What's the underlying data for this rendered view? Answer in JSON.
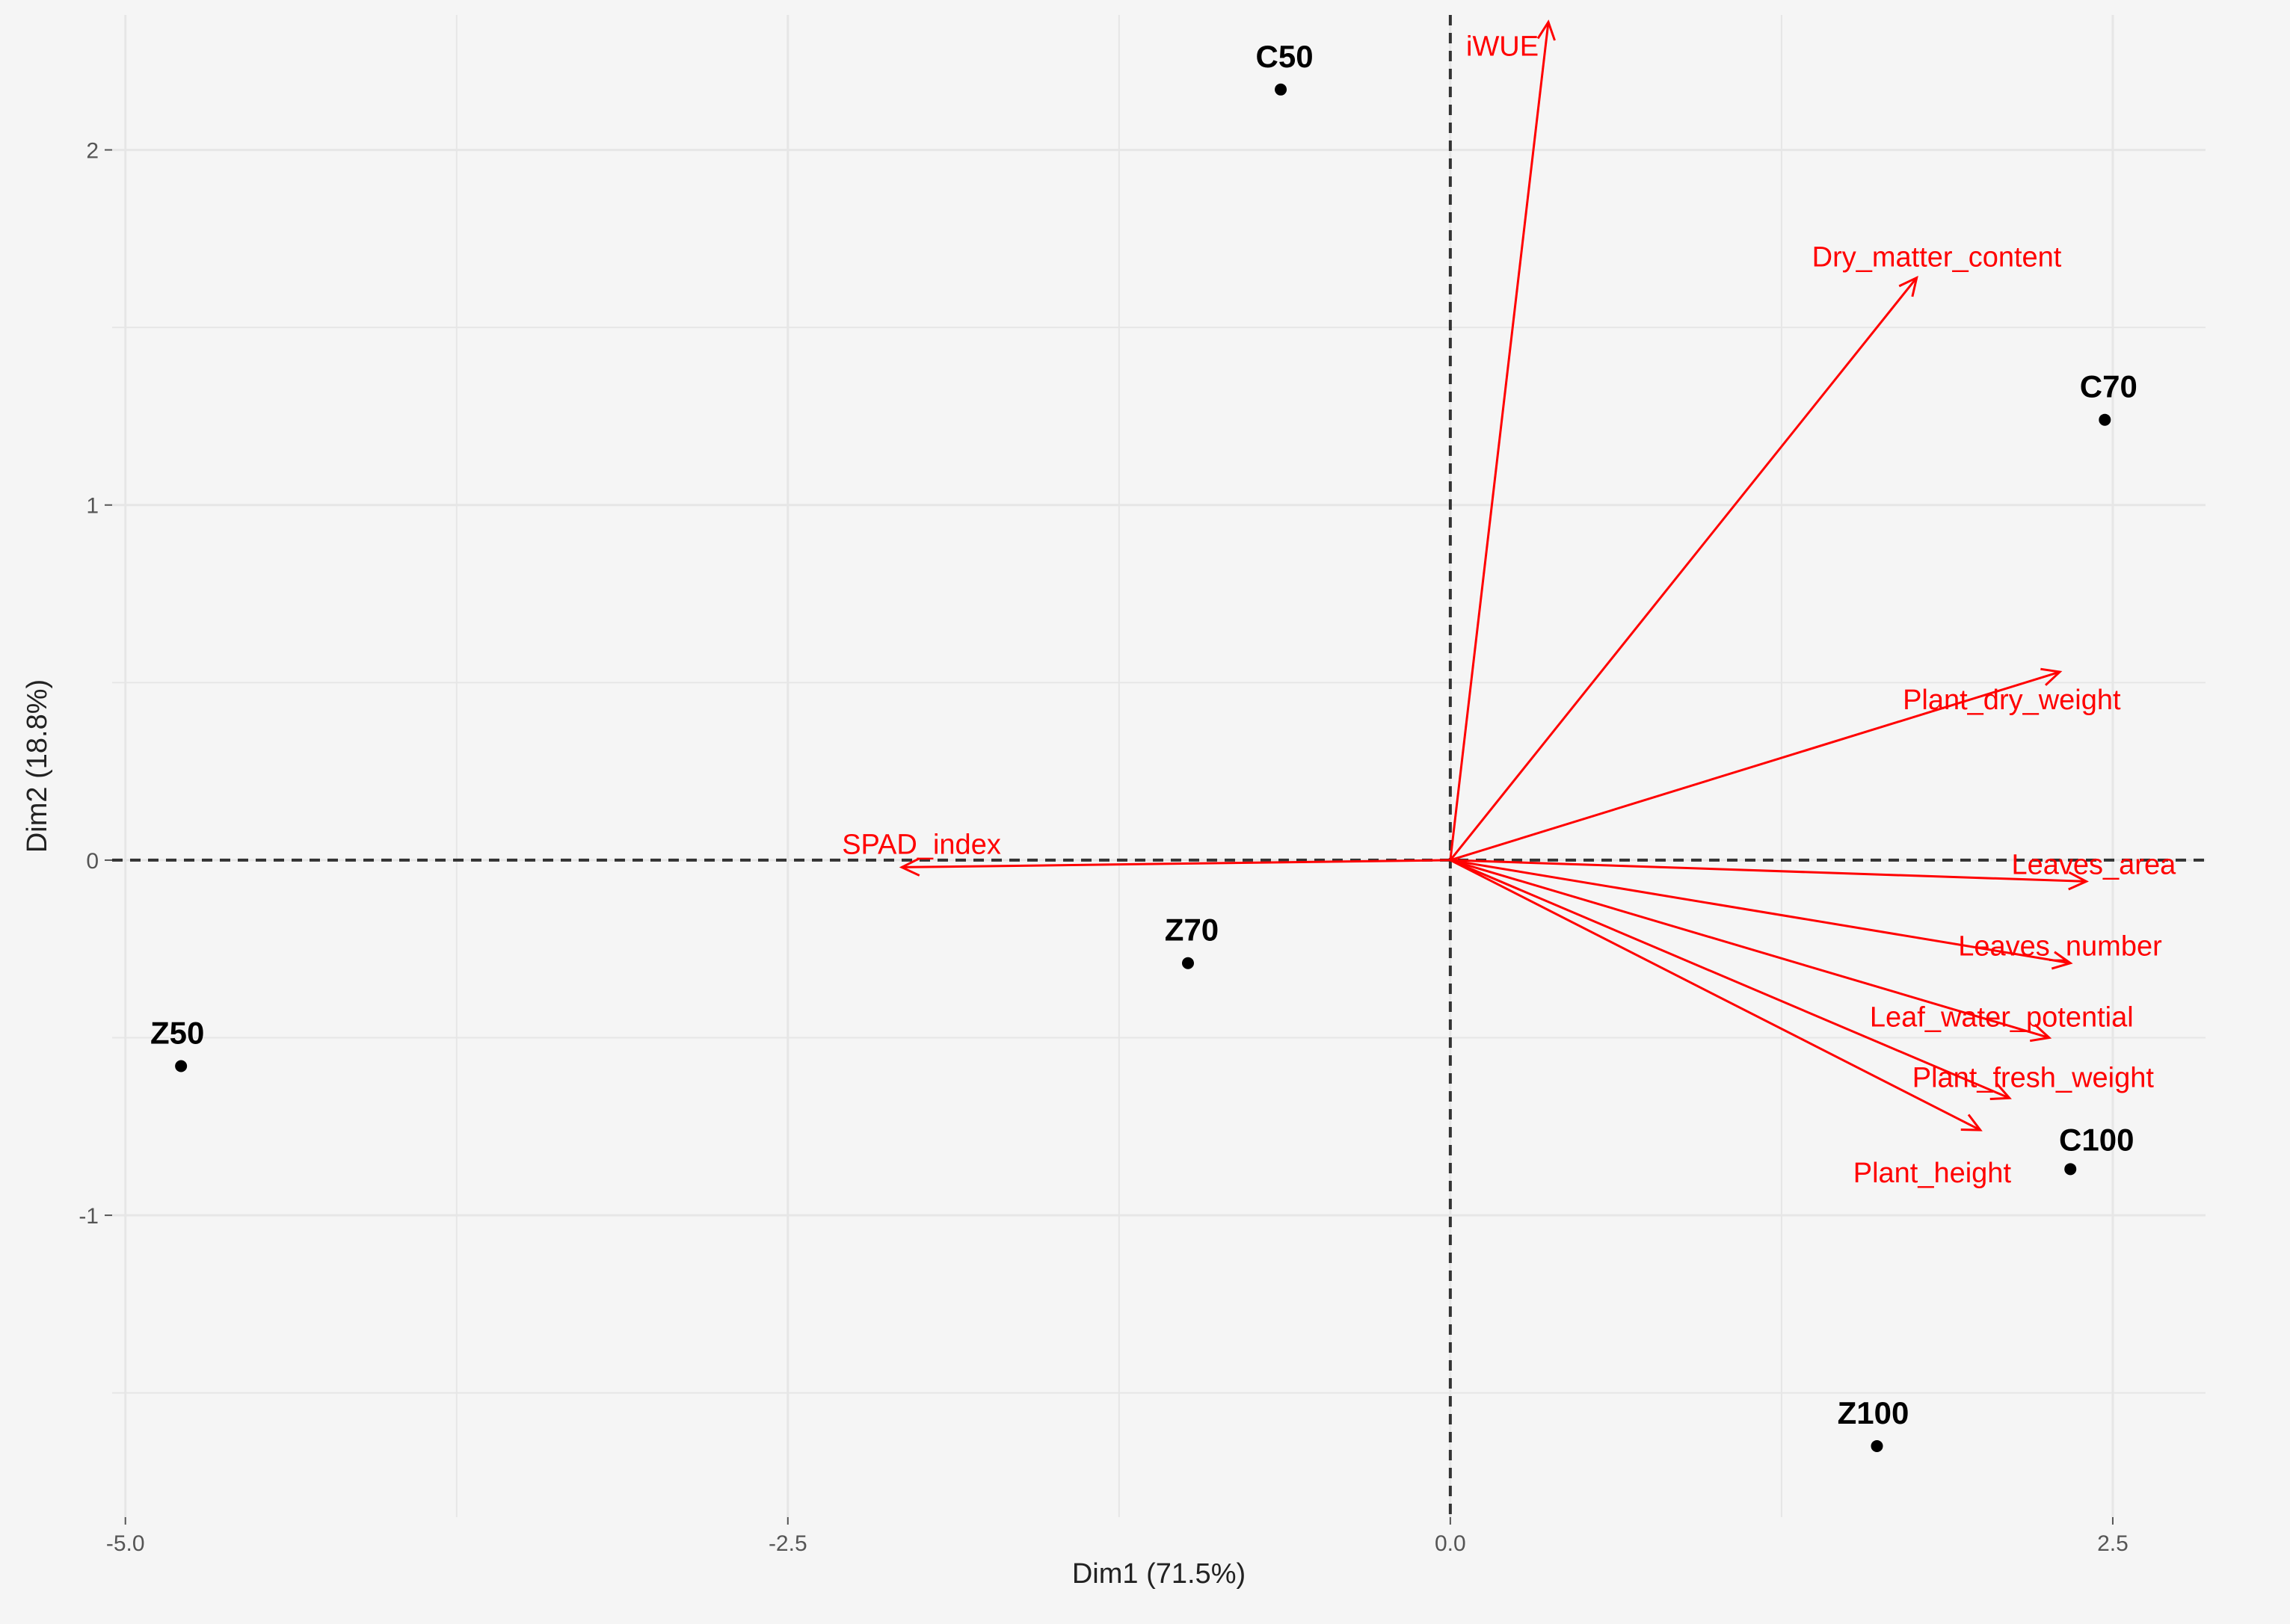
{
  "chart_data": {
    "type": "scatter",
    "subtype": "pca-biplot",
    "xlabel": "Dim1 (71.5%)",
    "ylabel": "Dim2 (18.8%)",
    "xlim": [
      -5.05,
      2.85
    ],
    "ylim": [
      -1.85,
      2.38
    ],
    "x_ticks": [
      {
        "value": -5.0,
        "label": "-5.0"
      },
      {
        "value": -2.5,
        "label": "-2.5"
      },
      {
        "value": 0.0,
        "label": "0.0"
      },
      {
        "value": 2.5,
        "label": "2.5"
      }
    ],
    "y_ticks": [
      {
        "value": -1,
        "label": "-1"
      },
      {
        "value": 0,
        "label": "0"
      },
      {
        "value": 1,
        "label": "1"
      },
      {
        "value": 2,
        "label": "2"
      }
    ],
    "minor_x": [
      -3.75,
      -1.25,
      1.25
    ],
    "minor_y": [
      -1.5,
      -0.5,
      0.5,
      1.5
    ],
    "grid": true,
    "background": "#f5f5f5",
    "grid_color": "#e6e6e6",
    "point_color": "#000000",
    "vector_color": "#ff0000",
    "points": [
      {
        "label": "C50",
        "x": -0.64,
        "y": 2.17
      },
      {
        "label": "C70",
        "x": 2.47,
        "y": 1.24
      },
      {
        "label": "Z70",
        "x": -0.99,
        "y": -0.29
      },
      {
        "label": "Z50",
        "x": -4.79,
        "y": -0.58
      },
      {
        "label": "C100",
        "x": 2.34,
        "y": -0.87
      },
      {
        "label": "Z100",
        "x": 1.61,
        "y": -1.65
      }
    ],
    "vectors": [
      {
        "label": "iWUE",
        "x": 0.37,
        "y": 2.36
      },
      {
        "label": "Dry_matter_content",
        "x": 1.76,
        "y": 1.64
      },
      {
        "label": "Plant_dry_weight",
        "x": 2.3,
        "y": 0.53
      },
      {
        "label": "SPAD_index",
        "x": -2.07,
        "y": -0.02
      },
      {
        "label": "Leaves_area",
        "x": 2.4,
        "y": -0.06
      },
      {
        "label": "Leaves_number",
        "x": 2.34,
        "y": -0.29
      },
      {
        "label": "Leaf_water_potential",
        "x": 2.26,
        "y": -0.5
      },
      {
        "label": "Plant_fresh_weight",
        "x": 2.11,
        "y": -0.67
      },
      {
        "label": "Plant_height",
        "x": 2.0,
        "y": -0.76
      }
    ]
  }
}
